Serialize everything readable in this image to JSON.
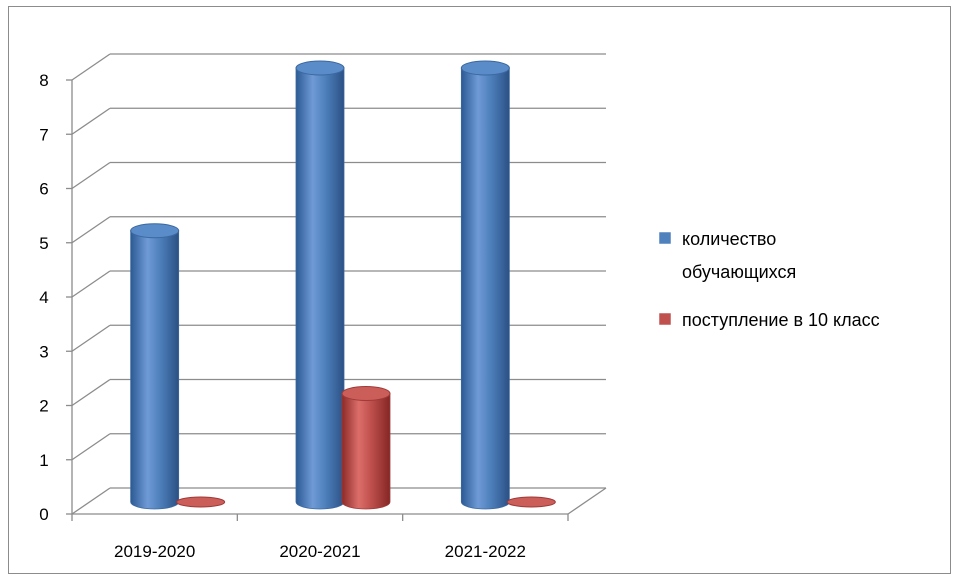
{
  "chart_data": {
    "type": "bar",
    "categories": [
      "2019-2020",
      "2020-2021",
      "2021-2022"
    ],
    "series": [
      {
        "name": "количество обучающихся",
        "values": [
          5,
          8,
          8
        ],
        "color": "#4f81bd"
      },
      {
        "name": "поступление в 10 класс",
        "values": [
          0,
          2,
          0
        ],
        "color": "#c0504d"
      }
    ],
    "legend_lines": [
      [
        "количество",
        "обучающихся"
      ],
      [
        "поступление в 10 класс"
      ]
    ],
    "title": "",
    "xlabel": "",
    "ylabel": "",
    "ylim": [
      0,
      8
    ],
    "yticks": [
      0,
      1,
      2,
      3,
      4,
      5,
      6,
      7,
      8
    ],
    "grid": true,
    "three_d": true,
    "bar_shape": "cylinder",
    "legend_position": "right"
  }
}
